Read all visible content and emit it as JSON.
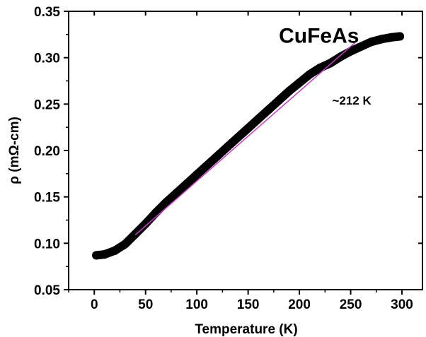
{
  "chart_data": {
    "type": "line",
    "title": "",
    "xlabel": "Temperature (K)",
    "ylabel": "ρ (mΩ-cm)",
    "xlim": [
      -25,
      320
    ],
    "ylim": [
      0.05,
      0.35
    ],
    "x_ticks": [
      0,
      50,
      100,
      150,
      200,
      250,
      300
    ],
    "y_ticks": [
      0.05,
      0.1,
      0.15,
      0.2,
      0.25,
      0.3,
      0.35
    ],
    "x_tick_labels": [
      "0",
      "50",
      "100",
      "150",
      "200",
      "250",
      "300"
    ],
    "y_tick_labels": [
      "0.05",
      "0.10",
      "0.15",
      "0.20",
      "0.25",
      "0.30",
      "0.35"
    ],
    "grid": false,
    "legend": "none",
    "series": [
      {
        "color": "#000000",
        "style": "thick-markers",
        "x": [
          2,
          10,
          20,
          30,
          40,
          50,
          60,
          70,
          80,
          90,
          100,
          110,
          120,
          130,
          140,
          150,
          160,
          170,
          180,
          190,
          200,
          210,
          220,
          230,
          240,
          250,
          260,
          270,
          280,
          290,
          298
        ],
        "y": [
          0.087,
          0.088,
          0.092,
          0.099,
          0.11,
          0.121,
          0.133,
          0.144,
          0.154,
          0.164,
          0.174,
          0.184,
          0.194,
          0.204,
          0.214,
          0.224,
          0.234,
          0.244,
          0.254,
          0.264,
          0.273,
          0.282,
          0.289,
          0.294,
          0.301,
          0.307,
          0.312,
          0.317,
          0.32,
          0.322,
          0.323
        ]
      },
      {
        "color": "#cc33cc",
        "style": "thin-line",
        "x": [
          40,
          254
        ],
        "y": [
          0.109,
          0.316
        ]
      }
    ],
    "annotations": [
      {
        "text": "CuFeAs",
        "x": 180,
        "y": 0.316
      },
      {
        "text": "~212 K",
        "x": 232,
        "y": 0.2495
      }
    ]
  }
}
